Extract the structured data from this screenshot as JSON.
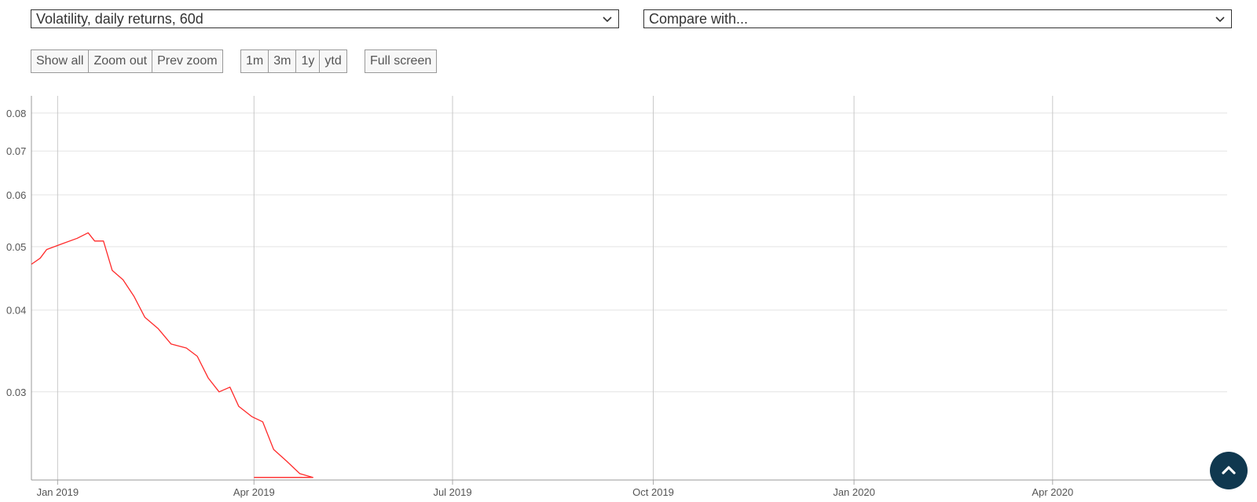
{
  "controls": {
    "metric_select": "Volatility, daily returns, 60d",
    "compare_select": "Compare with...",
    "zoom_buttons": [
      "Show all",
      "Zoom out",
      "Prev zoom"
    ],
    "range_buttons": [
      "1m",
      "3m",
      "1y",
      "ytd"
    ],
    "fullscreen_button": "Full screen"
  },
  "chart_data": {
    "type": "line",
    "title": "",
    "xlabel": "",
    "ylabel": "",
    "y_scale": "log",
    "ylim": [
      0.022,
      0.085
    ],
    "xlim": [
      "2018-12-20",
      "2020-06-20"
    ],
    "x_ticks": [
      {
        "date": "2019-01-01",
        "label": "Jan 2019"
      },
      {
        "date": "2019-04-01",
        "label": "Apr 2019"
      },
      {
        "date": "2019-07-01",
        "label": "Jul 2019"
      },
      {
        "date": "2019-10-01",
        "label": "Oct 2019"
      },
      {
        "date": "2020-01-01",
        "label": "Jan 2020"
      },
      {
        "date": "2020-04-01",
        "label": "Apr 2020"
      }
    ],
    "y_ticks": [
      {
        "value": 0.03,
        "label": "0.03"
      },
      {
        "value": 0.04,
        "label": "0.04"
      },
      {
        "value": 0.05,
        "label": "0.05"
      },
      {
        "value": 0.06,
        "label": "0.06"
      },
      {
        "value": 0.07,
        "label": "0.07"
      },
      {
        "value": 0.08,
        "label": "0.08"
      }
    ],
    "grid": true,
    "line_color": "#ff2a2a",
    "series": [
      {
        "name": "",
        "points": [
          [
            "2018-12-20",
            0.047
          ],
          [
            "2018-12-24",
            0.048
          ],
          [
            "2018-12-27",
            0.0495
          ],
          [
            "2019-01-03",
            0.0505
          ],
          [
            "2019-01-10",
            0.0515
          ],
          [
            "2019-01-15",
            0.0525
          ],
          [
            "2019-01-18",
            0.051
          ],
          [
            "2019-01-22",
            0.051
          ],
          [
            "2019-01-26",
            0.046
          ],
          [
            "2019-01-31",
            0.0445
          ],
          [
            "2019-02-05",
            0.042
          ],
          [
            "2019-02-10",
            0.039
          ],
          [
            "2019-02-16",
            0.0375
          ],
          [
            "2019-02-22",
            0.0355
          ],
          [
            "2019-03-01",
            0.035
          ],
          [
            "2019-03-06",
            0.034
          ],
          [
            "2019-03-11",
            0.0315
          ],
          [
            "2019-03-16",
            0.03
          ],
          [
            "2019-03-21",
            0.0305
          ],
          [
            "2019-03-25",
            0.0285
          ],
          [
            "2019-03-31",
            0.0275
          ],
          [
            "2019-04-05",
            0.027
          ],
          [
            "2019-04-10",
            0.0245
          ],
          [
            "2019-04-16",
            0.0235
          ],
          [
            "2019-04-22",
            0.0225
          ],
          [
            "2019-04-28",
            0.0222
          ],
          [
            "2019-04-01",
            0.0222
          ]
        ]
      }
    ]
  },
  "scroll_top_icon": "chevron-up-icon"
}
